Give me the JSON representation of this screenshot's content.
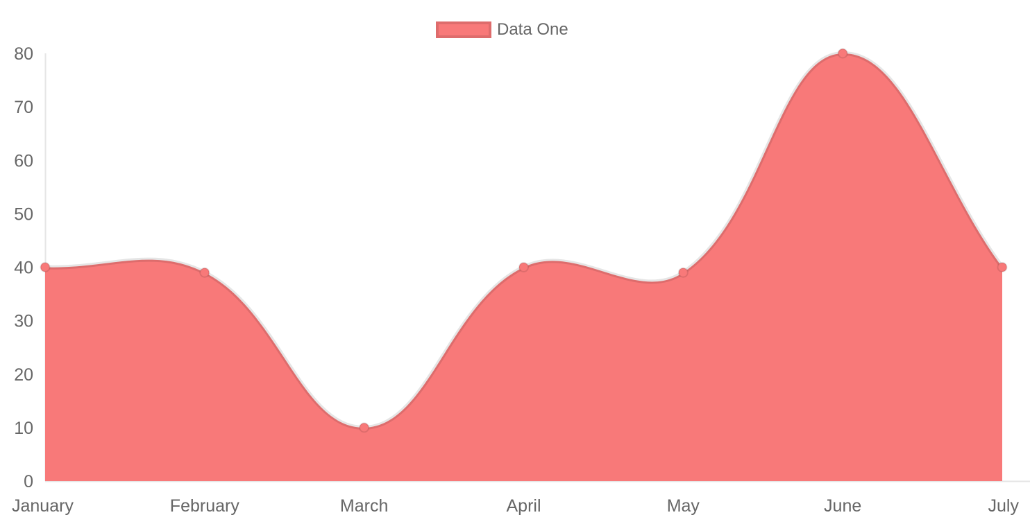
{
  "chart_data": {
    "type": "area",
    "title": "",
    "categories": [
      "January",
      "February",
      "March",
      "April",
      "May",
      "June",
      "July"
    ],
    "series": [
      {
        "name": "Data One",
        "values": [
          40,
          39,
          10,
          40,
          39,
          80,
          40
        ]
      }
    ],
    "xlabel": "",
    "ylabel": "",
    "ylim": [
      0,
      80
    ],
    "y_ticks": [
      0,
      10,
      20,
      30,
      40,
      50,
      60,
      70,
      80
    ],
    "grid": false,
    "legend_position": "top",
    "line_tension": 0.4,
    "colors": {
      "fill": "#f87979",
      "line": "rgba(0,0,0,0.1)",
      "point_fill": "#f87979",
      "point_border": "rgba(0,0,0,0.1)",
      "axis_line": "rgba(0,0,0,0.1)",
      "tick_text": "#666666"
    }
  },
  "legend": {
    "items": [
      {
        "label": "Data One",
        "color": "#f87979"
      }
    ]
  }
}
